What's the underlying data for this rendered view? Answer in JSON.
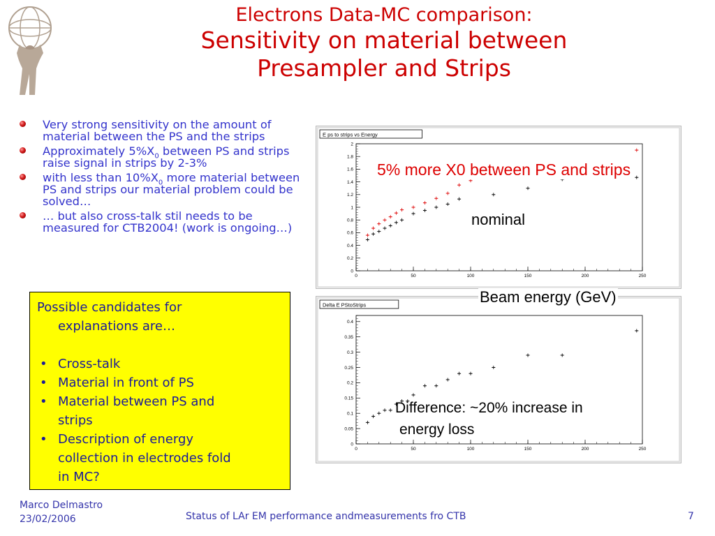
{
  "title": {
    "line1": "Electrons Data-MC comparison:",
    "line2": "Sensitivity on material between",
    "line3": "Presampler and Strips"
  },
  "bullets": [
    {
      "pre": "Very strong sensitivity on the amount of material between the PS and the strips",
      "sub": "",
      "post": ""
    },
    {
      "pre": "Approximately 5%X",
      "sub": "0",
      "post": " between PS and strips raise signal in strips by 2-3%"
    },
    {
      "pre": "with less than 10%X",
      "sub": "0",
      "post": " more material between PS and strips our material problem could be solved…"
    },
    {
      "pre": "… but also cross-talk stil needs to be measured for CTB2004! (work is ongoing…)",
      "sub": "",
      "post": ""
    }
  ],
  "candidates": {
    "intro_line1": "Possible candidates for",
    "intro_line2": "explanations are…",
    "bullet_symbol": "•",
    "items": [
      "Cross-talk",
      "Material in front of PS",
      "Material between PS and",
      "strips",
      "Description of energy",
      "collection in electrodes fold",
      "in MC?"
    ]
  },
  "overlays": {
    "red_label": "5% more X0 between PS and strips",
    "nominal": "nominal",
    "beam_energy": "Beam energy (GeV)",
    "difference_line1": "Difference:  ~20% increase in",
    "difference_line2": "energy loss"
  },
  "footer": {
    "author": "Marco Delmastro",
    "date": "23/02/2006",
    "center": "Status of LAr EM performance andmeasurements fro CTB",
    "page": "7"
  },
  "colors": {
    "title": "#cc0000",
    "bullet_text": "#3333cc",
    "box_bg": "#ffff00",
    "box_text": "#1a1a99",
    "series_red": "#dd0000",
    "series_black": "#000000",
    "footer": "#3333aa"
  },
  "chart_data": [
    {
      "type": "scatter",
      "title": "E ps to strips vs Energy",
      "xlim": [
        0,
        250
      ],
      "ylim": [
        0,
        2
      ],
      "xticks": [
        "0",
        "50",
        "100",
        "150",
        "200",
        "250"
      ],
      "yticks": [
        "0",
        "0.2",
        "0.4",
        "0.6",
        "0.8",
        "1",
        "1.2",
        "1.4",
        "1.6",
        "1.8",
        "2"
      ],
      "series": [
        {
          "color": "red",
          "x": [
            10,
            15,
            20,
            25,
            30,
            35,
            40,
            50,
            60,
            70,
            80,
            90,
            100,
            120,
            150,
            180,
            245
          ],
          "y": [
            0.56,
            0.67,
            0.74,
            0.8,
            0.85,
            0.91,
            0.96,
            1.0,
            1.07,
            1.14,
            1.22,
            1.35,
            1.42,
            1.52,
            1.61,
            1.62,
            1.9
          ]
        },
        {
          "color": "black",
          "x": [
            10,
            15,
            20,
            25,
            30,
            35,
            40,
            50,
            60,
            70,
            80,
            90,
            120,
            150,
            180,
            245
          ],
          "y": [
            0.49,
            0.58,
            0.62,
            0.67,
            0.71,
            0.76,
            0.8,
            0.9,
            0.95,
            1.0,
            1.05,
            1.13,
            1.2,
            1.3,
            1.44,
            1.47
          ]
        }
      ]
    },
    {
      "type": "scatter",
      "title": "Delta E PStoStrips",
      "xlim": [
        0,
        250
      ],
      "ylim": [
        0,
        0.42
      ],
      "xticks": [
        "0",
        "50",
        "100",
        "150",
        "200",
        "250"
      ],
      "yticks": [
        "0",
        "0.05",
        "0.1",
        "0.15",
        "0.2",
        "0.25",
        "0.3",
        "0.35",
        "0.4"
      ],
      "series": [
        {
          "color": "black",
          "x": [
            10,
            15,
            20,
            25,
            30,
            35,
            40,
            45,
            50,
            60,
            70,
            80,
            90,
            100,
            120,
            150,
            180,
            245
          ],
          "y": [
            0.07,
            0.09,
            0.1,
            0.11,
            0.11,
            0.13,
            0.14,
            0.14,
            0.16,
            0.19,
            0.19,
            0.21,
            0.23,
            0.23,
            0.25,
            0.29,
            0.29,
            0.37
          ]
        }
      ]
    }
  ]
}
